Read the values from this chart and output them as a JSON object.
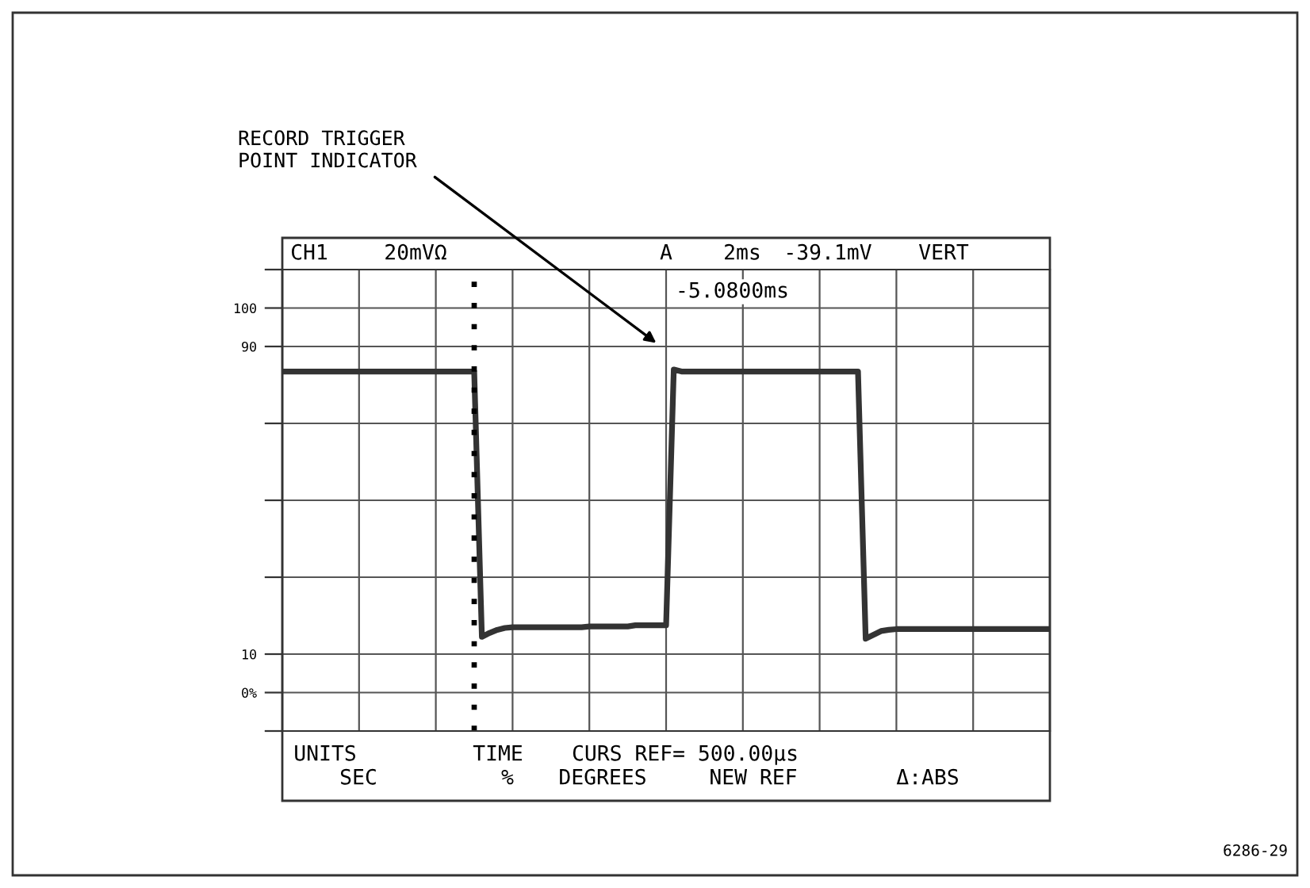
{
  "chart_data": {
    "type": "line",
    "categories": [
      null,
      null,
      null,
      null,
      null,
      null,
      null,
      null,
      null,
      null,
      null,
      null,
      null,
      null,
      null,
      null,
      null,
      null,
      null,
      null,
      null,
      null,
      null,
      null,
      null,
      null,
      null,
      null,
      null,
      null,
      null,
      null,
      null,
      null,
      null,
      null,
      null,
      null,
      null,
      null,
      null,
      null,
      null,
      null,
      null,
      null,
      null,
      null,
      null,
      null,
      null,
      null,
      null,
      null,
      null,
      null,
      null,
      null,
      null,
      null,
      null,
      null,
      null,
      null,
      null,
      null,
      null,
      null,
      null,
      null,
      null,
      null,
      null,
      null,
      null,
      null,
      null,
      null,
      null,
      null,
      null,
      null,
      null,
      null,
      null,
      null,
      null,
      null,
      null,
      null,
      null,
      null,
      null,
      null,
      null,
      null,
      null,
      null,
      null,
      null,
      null
    ],
    "series": [
      {
        "color": "#333333",
        "values": [
          83.5,
          83.5,
          83.5,
          83.5,
          83.5,
          83.5,
          83.5,
          83.5,
          83.5,
          83.5,
          83.5,
          83.5,
          83.5,
          83.5,
          83.5,
          83.5,
          83.5,
          83.5,
          83.5,
          83.5,
          83.5,
          83.5,
          83.5,
          83.5,
          83.5,
          83.5,
          14.5,
          15.5,
          16.3,
          16.8,
          17,
          17,
          17,
          17,
          17,
          17,
          17,
          17,
          17,
          17,
          17.2,
          17.2,
          17.2,
          17.2,
          17.2,
          17.2,
          17.5,
          17.5,
          17.5,
          17.5,
          17.5,
          84,
          83.5,
          83.5,
          83.5,
          83.5,
          83.5,
          83.5,
          83.5,
          83.5,
          83.5,
          83.5,
          83.5,
          83.5,
          83.5,
          83.5,
          83.5,
          83.5,
          83.5,
          83.5,
          83.5,
          83.5,
          83.5,
          83.5,
          83.5,
          83.5,
          14,
          15,
          16,
          16.3,
          16.5,
          16.5,
          16.5,
          16.5,
          16.5,
          16.5,
          16.5,
          16.5,
          16.5,
          16.5,
          16.5,
          16.5,
          16.5,
          16.5,
          16.5,
          16.5,
          16.5,
          16.5,
          16.5,
          16.5,
          16.5
        ]
      }
    ],
    "ylim": [
      -10,
      110
    ],
    "yticks": [
      {
        "value": -10,
        "label": null
      },
      {
        "value": 0,
        "label": "0%"
      },
      {
        "value": 10,
        "label": "10"
      },
      {
        "value": 30,
        "label": null
      },
      {
        "value": 50,
        "label": null
      },
      {
        "value": 70,
        "label": null
      },
      {
        "value": 90,
        "label": "90"
      },
      {
        "value": 100,
        "label": "100"
      },
      {
        "value": 110,
        "label": null
      }
    ],
    "tick_labels": "y",
    "grid": true,
    "marker": "none",
    "line_style": "solid",
    "annotations": [
      "RECORD TRIGGER\nPOINT INDICATOR",
      "CH1",
      "20mVΩ",
      "A",
      "2ms",
      "-39.1mV",
      "VERT",
      "-5.0800ms",
      "UNITS",
      "TIME",
      "CURS REF= 500.00µs",
      "SEC",
      "%",
      "DEGREES",
      "NEW REF",
      "Δ:ABS",
      "6286-29"
    ]
  }
}
